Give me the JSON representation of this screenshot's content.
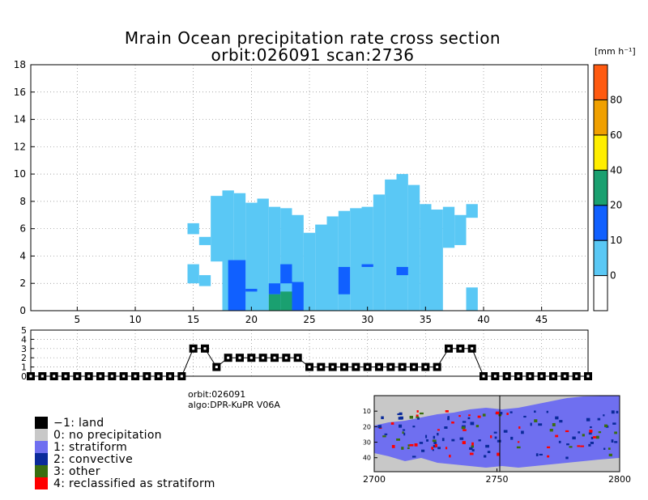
{
  "chart_data": [
    {
      "type": "heatmap",
      "title": "Mrain Ocean precipitation rate cross section",
      "subtitle": "orbit:026091     scan:2736",
      "xlabel": "",
      "ylabel": "",
      "xlim": [
        1,
        49
      ],
      "ylim": [
        0,
        18
      ],
      "x_ticks": [
        5,
        10,
        15,
        20,
        25,
        30,
        35,
        40,
        45
      ],
      "y_ticks": [
        0,
        2,
        4,
        6,
        8,
        10,
        12,
        14,
        16,
        18
      ],
      "grid": true,
      "colorbar": {
        "unit": "[mm h⁻¹]",
        "levels": [
          "0",
          "10",
          "20",
          "40",
          "60",
          "80"
        ],
        "colors": [
          "#ffffff",
          "#5ac8f5",
          "#1060ff",
          "#1aa070",
          "#ffee00",
          "#f0a000",
          "#ff5a10"
        ]
      },
      "cells_comment": "cell = [x_start, x_end, y_bottom_km, y_top_km, color_class]; class 1 = 0-10, 2 = 10-20, 3 = 20-40",
      "cells": [
        [
          14.5,
          15.5,
          5.6,
          6.4,
          1
        ],
        [
          14.5,
          15.5,
          2.0,
          3.4,
          1
        ],
        [
          15.5,
          16.5,
          4.8,
          5.4,
          1
        ],
        [
          15.5,
          16.5,
          1.8,
          2.6,
          1
        ],
        [
          16.5,
          17.5,
          3.6,
          8.4,
          1
        ],
        [
          17.5,
          18.5,
          0,
          8.8,
          1
        ],
        [
          18.5,
          19.5,
          0,
          8.6,
          1
        ],
        [
          19.5,
          20.5,
          0,
          7.9,
          1
        ],
        [
          20.5,
          21.5,
          0,
          8.2,
          1
        ],
        [
          21.5,
          22.5,
          0,
          7.6,
          1
        ],
        [
          22.5,
          23.5,
          0,
          7.5,
          1
        ],
        [
          23.5,
          24.5,
          0,
          7.0,
          1
        ],
        [
          24.5,
          25.5,
          0,
          5.7,
          1
        ],
        [
          25.5,
          26.5,
          0,
          6.3,
          1
        ],
        [
          26.5,
          27.5,
          0,
          6.9,
          1
        ],
        [
          27.5,
          28.5,
          0,
          7.3,
          1
        ],
        [
          28.5,
          29.5,
          0,
          7.5,
          1
        ],
        [
          29.5,
          30.5,
          0,
          7.6,
          1
        ],
        [
          30.5,
          31.5,
          0,
          8.5,
          1
        ],
        [
          31.5,
          32.5,
          0,
          9.6,
          1
        ],
        [
          32.5,
          33.5,
          0,
          10.0,
          1
        ],
        [
          33.5,
          34.5,
          0,
          9.2,
          1
        ],
        [
          34.5,
          35.5,
          0,
          7.8,
          1
        ],
        [
          35.5,
          36.5,
          0,
          7.4,
          1
        ],
        [
          36.5,
          37.5,
          4.6,
          7.6,
          1
        ],
        [
          37.5,
          38.5,
          4.8,
          7.0,
          1
        ],
        [
          38.5,
          39.5,
          6.8,
          7.8,
          1
        ],
        [
          38.5,
          39.5,
          0,
          1.7,
          1
        ],
        [
          18.0,
          19.5,
          0,
          3.7,
          2
        ],
        [
          19.5,
          20.5,
          1.4,
          1.6,
          2
        ],
        [
          21.5,
          22.5,
          1.2,
          2.0,
          2
        ],
        [
          22.5,
          23.5,
          2.0,
          3.4,
          2
        ],
        [
          23.5,
          24.5,
          0,
          2.1,
          2
        ],
        [
          27.5,
          28.5,
          1.2,
          3.2,
          2
        ],
        [
          29.5,
          30.5,
          3.2,
          3.4,
          2
        ],
        [
          32.5,
          33.5,
          2.6,
          3.2,
          2
        ],
        [
          21.5,
          22.5,
          0,
          1.2,
          3
        ],
        [
          22.5,
          23.5,
          0,
          1.4,
          3
        ]
      ]
    },
    {
      "type": "line",
      "title": "",
      "xlim": [
        1,
        49
      ],
      "ylim": [
        0,
        5
      ],
      "y_ticks": [
        0,
        1,
        2,
        3,
        4,
        5
      ],
      "x": [
        1,
        2,
        3,
        4,
        5,
        6,
        7,
        8,
        9,
        10,
        11,
        12,
        13,
        14,
        15,
        16,
        17,
        18,
        19,
        20,
        21,
        22,
        23,
        24,
        25,
        26,
        27,
        28,
        29,
        30,
        31,
        32,
        33,
        34,
        35,
        36,
        37,
        38,
        39,
        40,
        41,
        42,
        43,
        44,
        45,
        46,
        47,
        48,
        49
      ],
      "values": [
        0,
        0,
        0,
        0,
        0,
        0,
        0,
        0,
        0,
        0,
        0,
        0,
        0,
        0,
        3,
        3,
        1,
        2,
        2,
        2,
        2,
        2,
        2,
        2,
        1,
        1,
        1,
        1,
        1,
        1,
        1,
        1,
        1,
        1,
        1,
        1,
        3,
        3,
        3,
        0,
        0,
        0,
        0,
        0,
        0,
        0,
        0,
        0,
        0
      ]
    },
    {
      "type": "heatmap",
      "title": "",
      "x_ticks": [
        2700,
        2750,
        2800
      ],
      "xlim": [
        2700,
        2800
      ],
      "y_ticks": [
        10,
        20,
        30,
        40
      ],
      "ylim": [
        0,
        49
      ]
    }
  ],
  "info": {
    "orbit_label": "orbit:026091",
    "algo_label": "algo:DPR-KuPR V06A"
  },
  "legend": [
    {
      "label": "−1: land",
      "color": "#000000"
    },
    {
      "label": "0: no precipitation",
      "color": "#c8c8c8"
    },
    {
      "label": "1: stratiform",
      "color": "#6f6ff0"
    },
    {
      "label": "2: convective",
      "color": "#0a2a9a"
    },
    {
      "label": "3: other",
      "color": "#3a6e10"
    },
    {
      "label": "4: reclassified as stratiform",
      "color": "#ff0000"
    }
  ]
}
